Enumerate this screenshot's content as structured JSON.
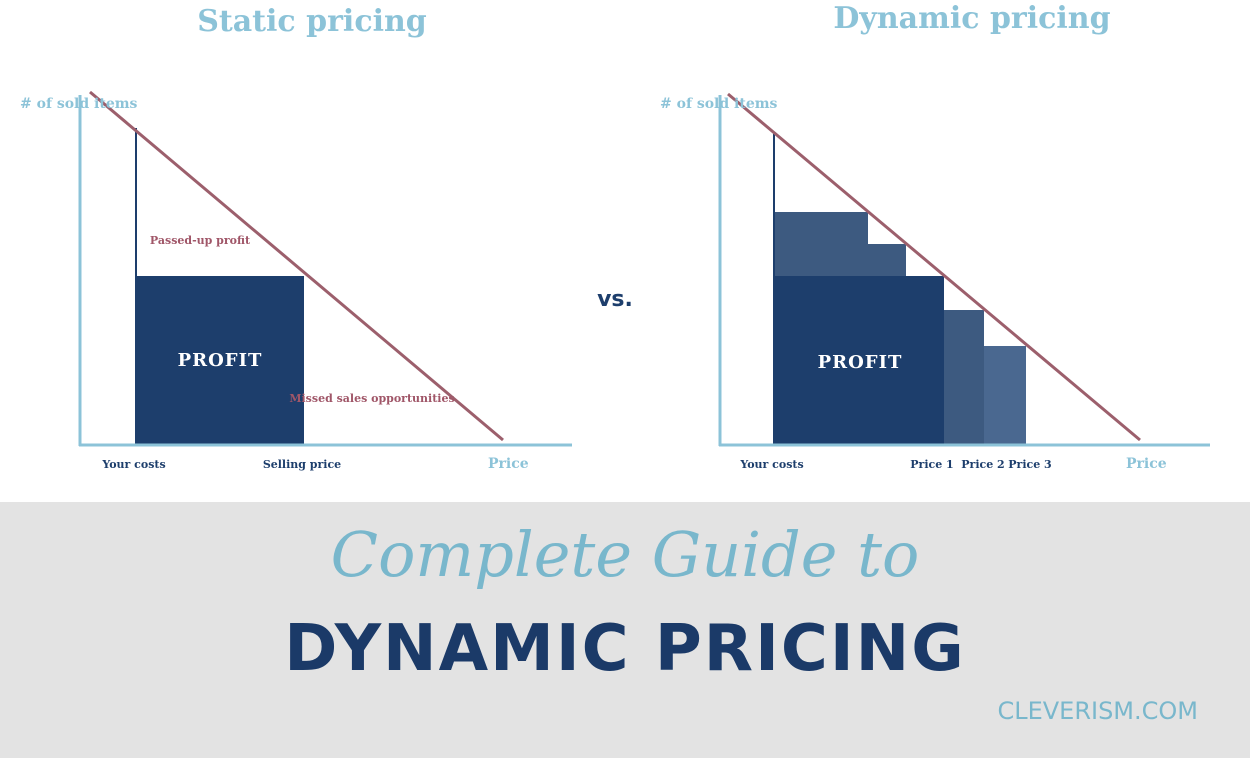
{
  "colors": {
    "axis": "#8cc3d8",
    "demand": "#9c5f6c",
    "profit": "#1d3e6c",
    "extra": "#3d5a80",
    "label": "#1d3e6c",
    "accent": "#79b7cc",
    "note": "#a05668"
  },
  "static": {
    "title": "Static pricing",
    "ylabel": "# of sold items",
    "xlabel": "Price",
    "ticks": [
      "Your costs",
      "Selling price"
    ],
    "profit_label": "PROFIT",
    "passed_up_label": "Passed-up profit",
    "missed_label": "Missed sales opportunities"
  },
  "dynamic": {
    "title": "Dynamic pricing",
    "ylabel": "# of sold items",
    "xlabel": "Price",
    "ticks": [
      "Your costs",
      "Price 1",
      "Price 2",
      "Price 3"
    ],
    "profit_label": "PROFIT"
  },
  "vs_label": "vs.",
  "banner": {
    "line1": "Complete Guide to",
    "line2": "DYNAMIC PRICING",
    "site": "CLEVERISM.COM"
  }
}
